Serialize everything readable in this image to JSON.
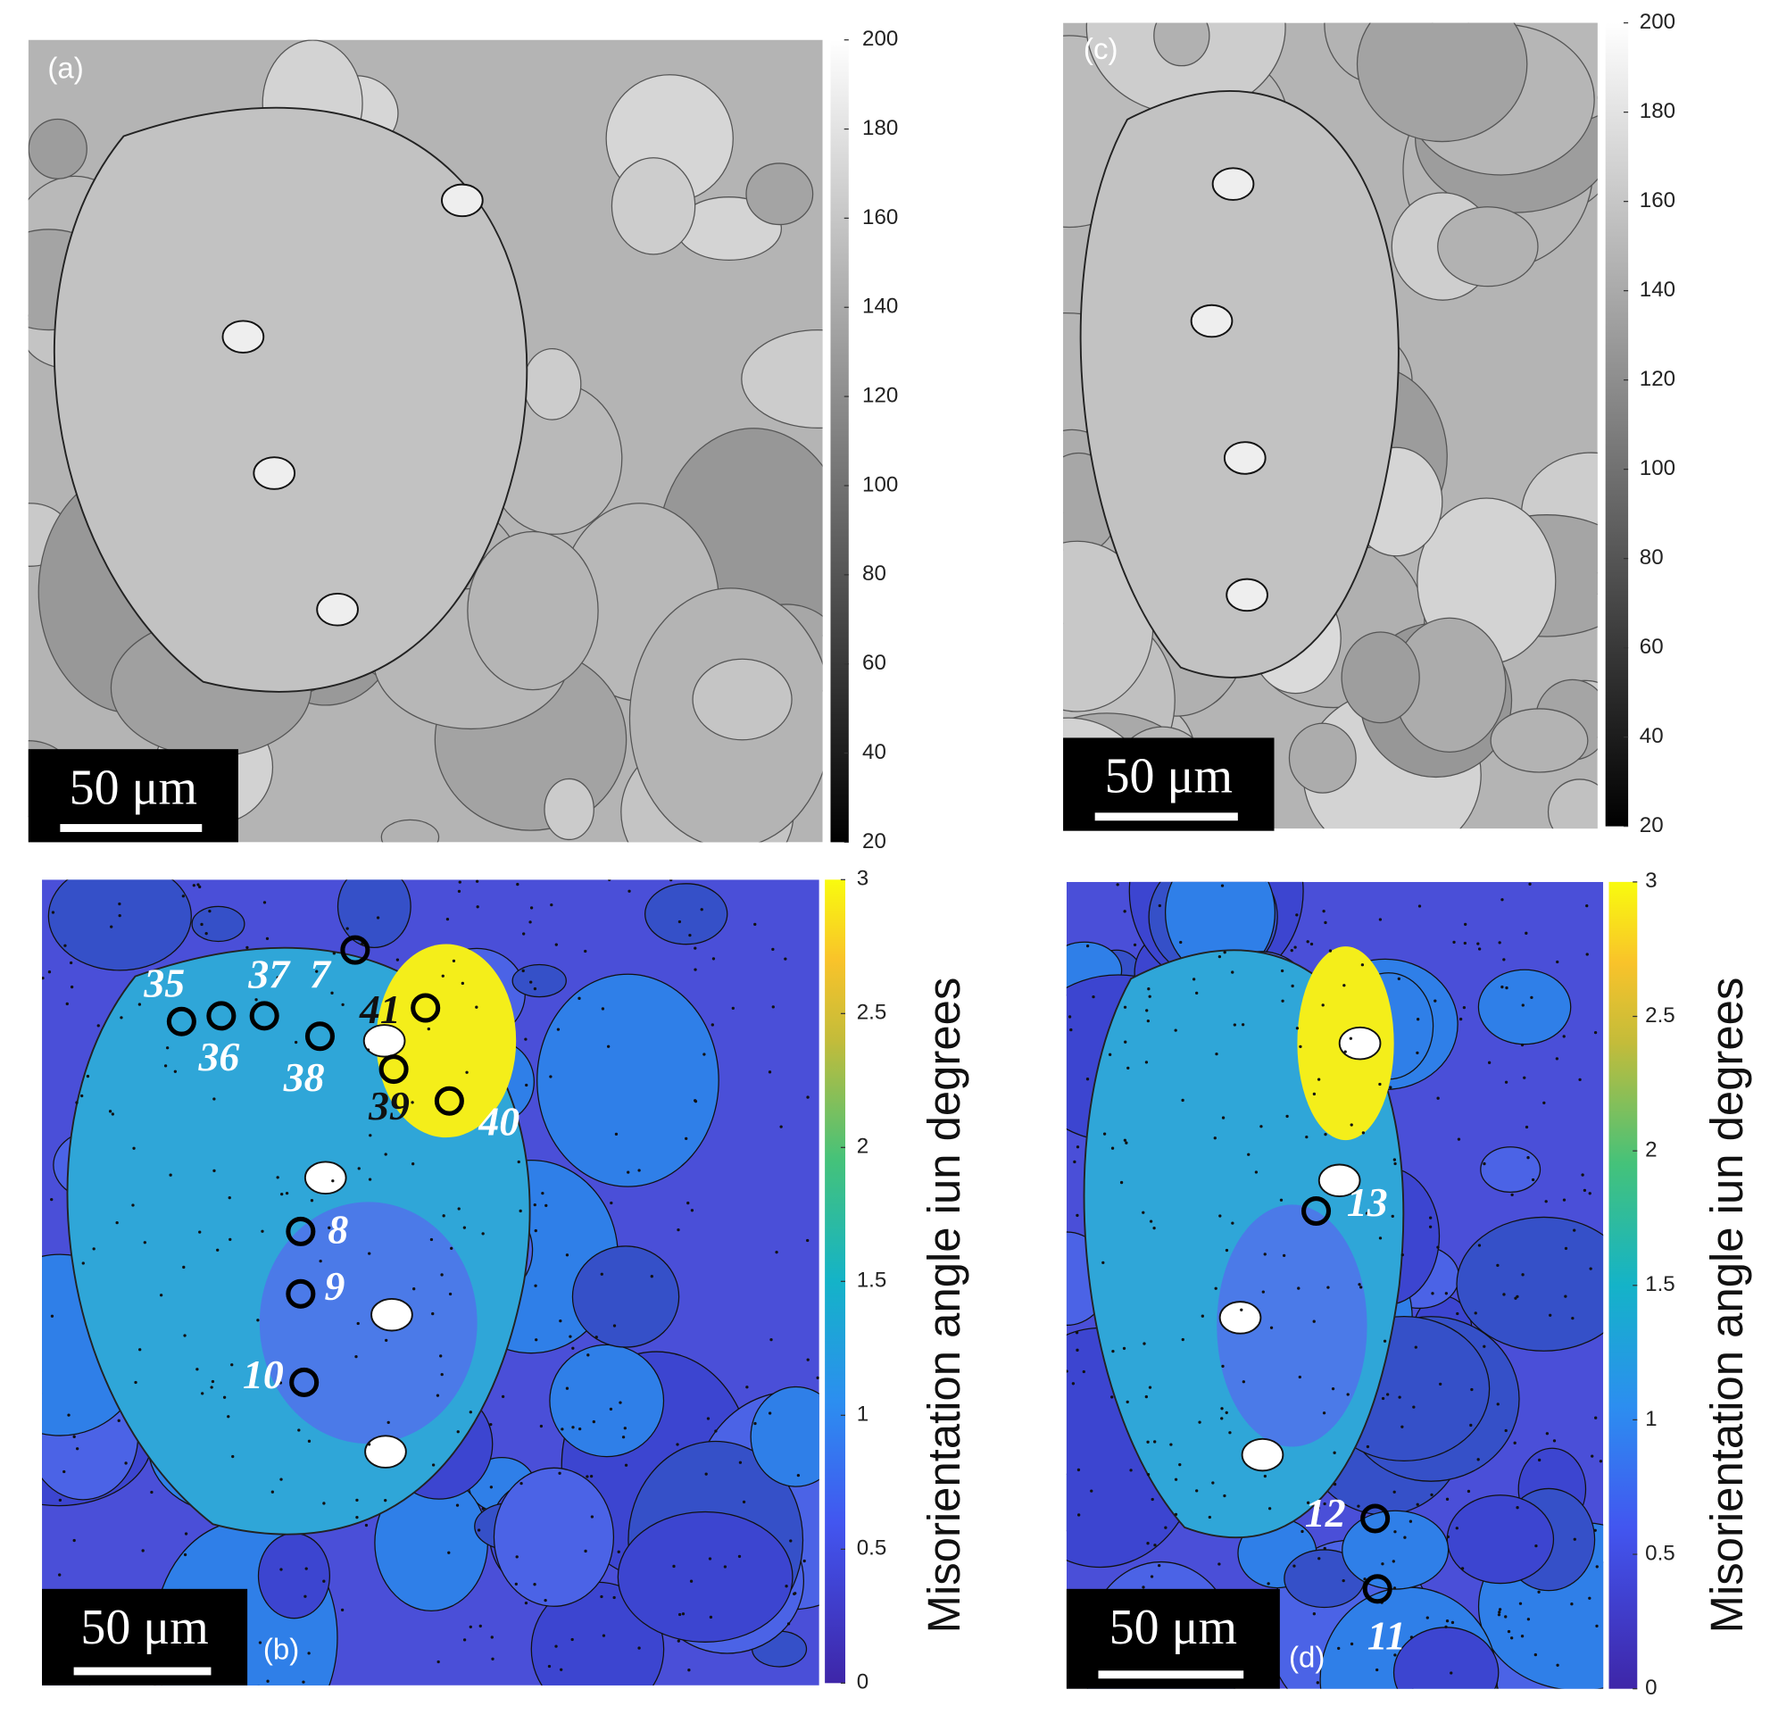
{
  "panels": [
    {
      "label": "(a)",
      "scale_bar": "50 μm",
      "colorbar": {
        "lim": [
          20,
          200
        ],
        "ticks": [
          20,
          40,
          60,
          80,
          100,
          120,
          140,
          160,
          180,
          200
        ]
      }
    },
    {
      "label": "(b)",
      "scale_bar": "50 μm",
      "colorbar": {
        "lim": [
          0,
          3
        ],
        "ticks": [
          0,
          0.5,
          1,
          1.5,
          2,
          2.5,
          3
        ],
        "title": "Misorientation angle iun degrees"
      },
      "markers": [
        "35",
        "36",
        "37",
        "7",
        "38",
        "41",
        "39",
        "40",
        "8",
        "9",
        "10"
      ]
    },
    {
      "label": "(c)",
      "scale_bar": "50 μm",
      "colorbar": {
        "lim": [
          20,
          200
        ],
        "ticks": [
          20,
          40,
          60,
          80,
          100,
          120,
          140,
          160,
          180,
          200
        ]
      }
    },
    {
      "label": "(d)",
      "scale_bar": "50 μm",
      "colorbar": {
        "lim": [
          0,
          3
        ],
        "ticks": [
          0,
          0.5,
          1,
          1.5,
          2,
          2.5,
          3
        ],
        "title": "Misorientation angle iun degrees"
      },
      "markers": [
        "13",
        "12",
        "11"
      ]
    }
  ]
}
